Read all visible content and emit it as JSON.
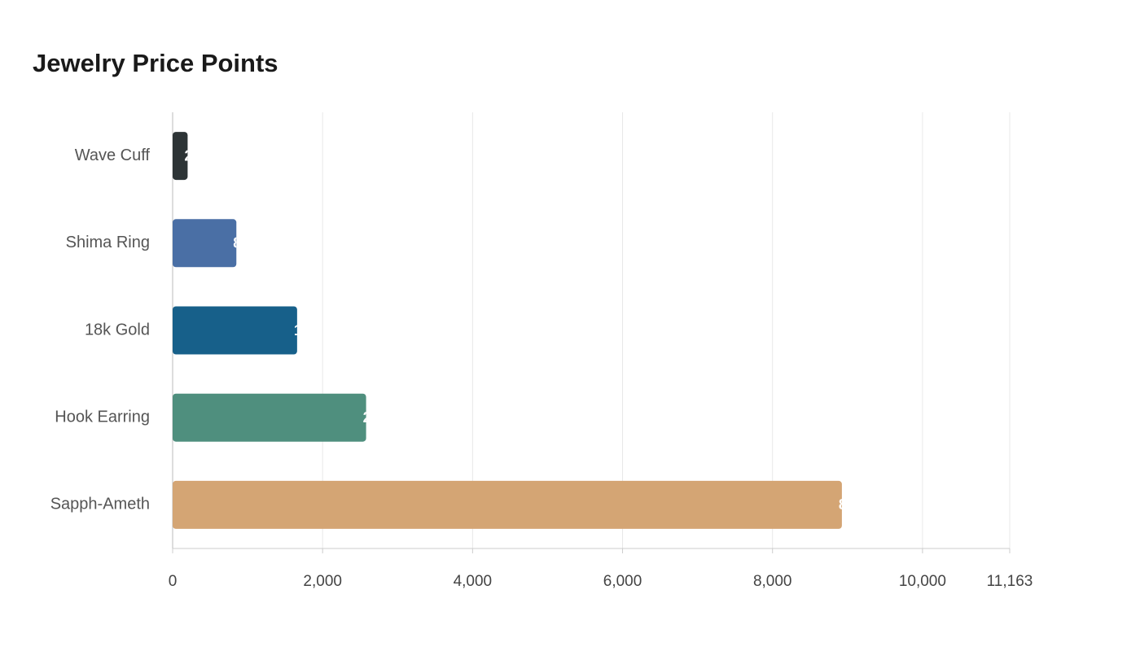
{
  "chart_data": {
    "type": "bar",
    "orientation": "horizontal",
    "title": "Jewelry Price Points",
    "categories": [
      "Wave Cuff",
      "Shima Ring",
      "18k Gold",
      "Hook Earring",
      "Sapph-Ameth"
    ],
    "values": [
      200,
      850,
      1660,
      2580,
      8925
    ],
    "colors": [
      "#2d3436",
      "#4a6fa5",
      "#17608a",
      "#4f8f7e",
      "#d4a574"
    ],
    "xlim": [
      0,
      11163
    ],
    "xticks": [
      0,
      {
        "value": 2000,
        "label": "2,000"
      },
      {
        "value": 4000,
        "label": "4,000"
      },
      {
        "value": 6000,
        "label": "6,000"
      },
      {
        "value": 8000,
        "label": "8,000"
      },
      {
        "value": 10000,
        "label": "10,000"
      },
      {
        "value": 11163,
        "label": "11,163"
      }
    ],
    "grid": true
  }
}
